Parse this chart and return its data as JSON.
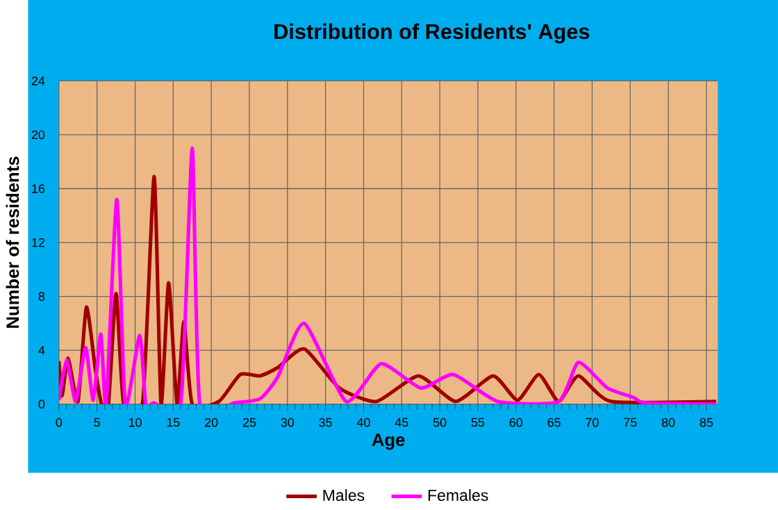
{
  "chart_data": {
    "type": "line",
    "title": "Distribution of Residents' Ages",
    "xlabel": "Age",
    "ylabel": "Number of residents",
    "xlim": [
      0,
      86.5
    ],
    "ylim": [
      0,
      24
    ],
    "xticks": [
      0,
      5,
      10,
      15,
      20,
      25,
      30,
      35,
      40,
      45,
      50,
      55,
      60,
      65,
      70,
      75,
      80,
      85
    ],
    "yticks": [
      0,
      4,
      8,
      12,
      16,
      20,
      24
    ],
    "grid": true,
    "legend": "bottom",
    "marker": "none",
    "line_style": "solid",
    "series": [
      {
        "name": "Males",
        "color": "#a00000",
        "x": [
          0,
          0.4,
          1.2,
          2.5,
          3.6,
          4.8,
          5.6,
          6.5,
          7.5,
          8.5,
          11,
          12.5,
          13.4,
          14.4,
          15.5,
          16.4,
          17.5,
          21,
          23.8,
          26.4,
          28.7,
          32.2,
          36.8,
          41.7,
          47.2,
          52.1,
          57.0,
          60.2,
          63.0,
          65.6,
          68.2,
          72.5,
          86.3
        ],
        "values": [
          3.2,
          0.6,
          3.4,
          0.2,
          7.2,
          2.5,
          0,
          0,
          8.2,
          0,
          0.2,
          16.9,
          0,
          9.0,
          0,
          6.1,
          0,
          0.2,
          2.2,
          2.1,
          2.7,
          4.1,
          1.2,
          0.2,
          2.1,
          0.2,
          2.1,
          0.3,
          2.2,
          0.2,
          2.1,
          0.2,
          0.2
        ]
      },
      {
        "name": "Females",
        "color": "#ff00ff",
        "x": [
          0,
          1,
          2.2,
          3.5,
          4.5,
          5.5,
          6.2,
          7.6,
          8.7,
          10.6,
          11.4,
          12.5,
          16,
          17.5,
          18.5,
          23,
          26.4,
          28.7,
          32.2,
          37.7,
          42.3,
          47.5,
          51.8,
          57.6,
          65.6,
          68.2,
          72,
          75.4,
          77,
          86.3
        ],
        "values": [
          0.3,
          3.3,
          0.2,
          4.2,
          0.3,
          5.2,
          0,
          15.2,
          0,
          5.1,
          0,
          0.1,
          0.1,
          19.0,
          0,
          0.1,
          0.4,
          2.0,
          6.0,
          0.2,
          3.0,
          1.2,
          2.2,
          0.2,
          0.2,
          3.1,
          1.2,
          0.5,
          0.1,
          0
        ]
      }
    ]
  }
}
